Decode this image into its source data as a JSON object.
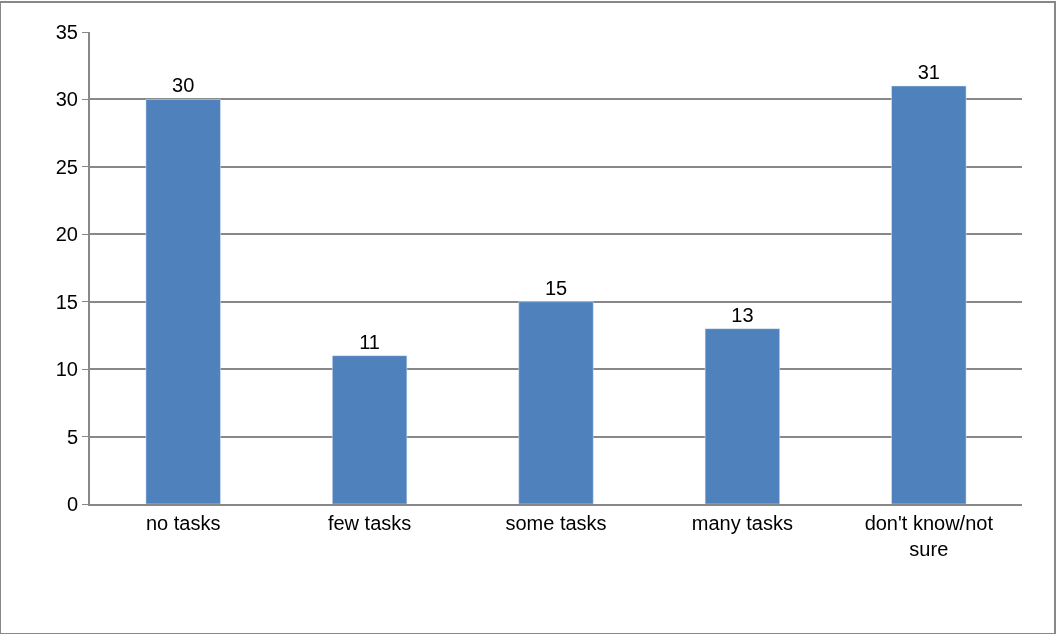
{
  "chart_data": {
    "type": "bar",
    "categories": [
      "no tasks",
      "few tasks",
      "some tasks",
      "many tasks",
      "don't know/not sure"
    ],
    "values": [
      30,
      11,
      15,
      13,
      31
    ],
    "color": "#4f81bd",
    "ylim": [
      0,
      35
    ],
    "yticks": [
      0,
      5,
      10,
      15,
      20,
      25,
      30,
      35
    ],
    "grid": "y",
    "data_labels": true
  }
}
